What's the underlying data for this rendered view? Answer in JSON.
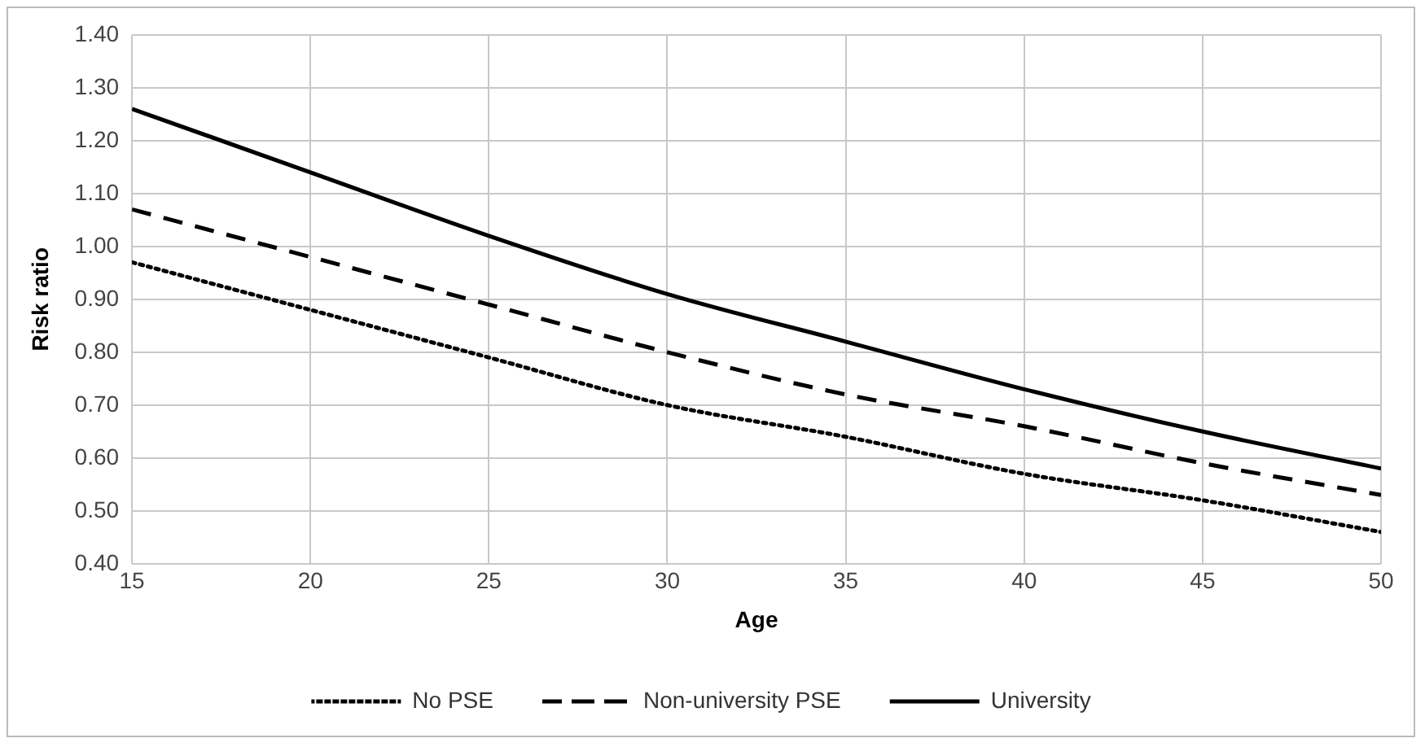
{
  "chart_data": {
    "type": "line",
    "xlabel": "Age",
    "ylabel": "Risk ratio",
    "x": [
      15,
      20,
      25,
      30,
      35,
      40,
      45,
      50
    ],
    "xlim": [
      15,
      50
    ],
    "xticks": [
      15,
      20,
      25,
      30,
      35,
      40,
      45,
      50
    ],
    "ylim": [
      0.4,
      1.4
    ],
    "yticks": [
      {
        "value": 0.4,
        "label": "0.40"
      },
      {
        "value": 0.5,
        "label": "0.50"
      },
      {
        "value": 0.6,
        "label": "0.60"
      },
      {
        "value": 0.7,
        "label": "0.70"
      },
      {
        "value": 0.8,
        "label": "0.80"
      },
      {
        "value": 0.9,
        "label": "0.90"
      },
      {
        "value": 1.0,
        "label": "1.00"
      },
      {
        "value": 1.1,
        "label": "1.10"
      },
      {
        "value": 1.2,
        "label": "1.20"
      },
      {
        "value": 1.3,
        "label": "1.30"
      },
      {
        "value": 1.4,
        "label": "1.40"
      }
    ],
    "grid": true,
    "legend": "bottom",
    "marker": "none",
    "series": [
      {
        "name": "No PSE",
        "color": "#000000",
        "line_style": "dotted",
        "values": [
          0.97,
          0.88,
          0.79,
          0.7,
          0.64,
          0.57,
          0.52,
          0.46
        ]
      },
      {
        "name": "Non-university PSE",
        "color": "#000000",
        "line_style": "dashed",
        "values": [
          1.07,
          0.98,
          0.89,
          0.8,
          0.72,
          0.66,
          0.59,
          0.53
        ]
      },
      {
        "name": "University",
        "color": "#000000",
        "line_style": "solid",
        "values": [
          1.26,
          1.14,
          1.02,
          0.91,
          0.82,
          0.73,
          0.65,
          0.58
        ]
      }
    ]
  }
}
